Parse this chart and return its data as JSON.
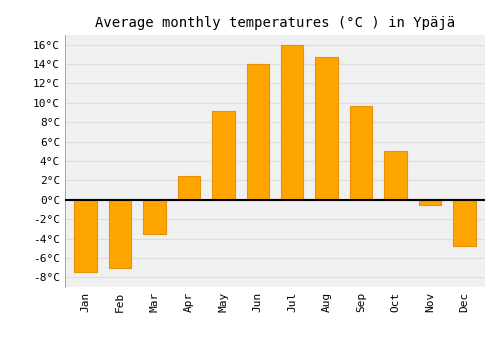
{
  "title": "Average monthly temperatures (°C ) in Ypäjä",
  "months": [
    "Jan",
    "Feb",
    "Mar",
    "Apr",
    "May",
    "Jun",
    "Jul",
    "Aug",
    "Sep",
    "Oct",
    "Nov",
    "Dec"
  ],
  "values": [
    -7.5,
    -7.0,
    -3.5,
    2.5,
    9.2,
    14.0,
    16.0,
    14.7,
    9.7,
    5.0,
    -0.5,
    -4.8
  ],
  "bar_color_face": "#FFA500",
  "bar_color_edge": "#E8900A",
  "ylim": [
    -9,
    17
  ],
  "yticks": [
    -8,
    -6,
    -4,
    -2,
    0,
    2,
    4,
    6,
    8,
    10,
    12,
    14,
    16
  ],
  "background_color": "#FFFFFF",
  "plot_bg_color": "#F0F0F0",
  "grid_color": "#DDDDDD",
  "zero_line_color": "#000000",
  "title_fontsize": 10,
  "tick_fontsize": 8,
  "font_family": "monospace"
}
